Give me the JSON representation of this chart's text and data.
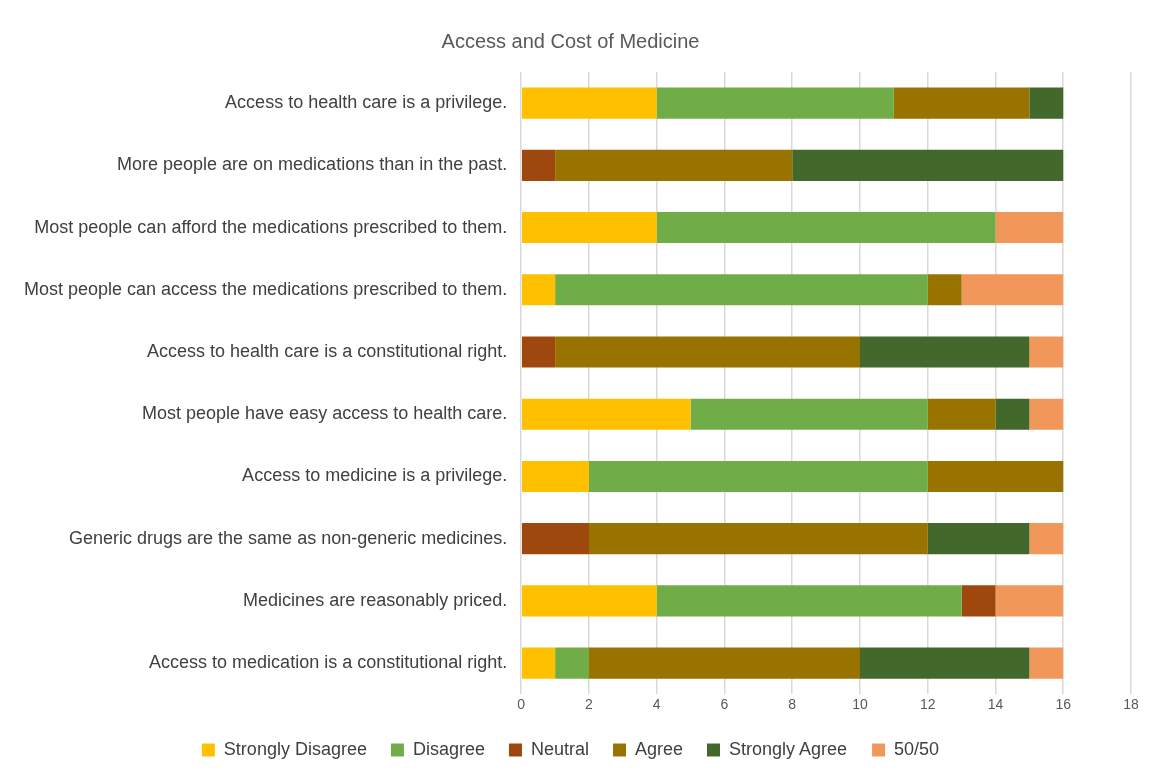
{
  "chart_data": {
    "type": "bar",
    "title": "Access and Cost of Medicine",
    "orientation": "horizontal",
    "stacked": true,
    "categories": [
      "Access to health care is a privilege.",
      "More people are on medications than in the past.",
      "Most people can afford the medications prescribed to them.",
      "Most people can access the medications prescribed to them.",
      "Access to health care is a constitutional right.",
      "Most people have easy access to health care.",
      "Access to medicine is a privilege.",
      "Generic drugs are the same as non-generic medicines.",
      "Medicines are reasonably priced.",
      "Access to medication is a constitutional right."
    ],
    "series": [
      {
        "name": "Strongly Disagree",
        "color": "#ffc000",
        "values": [
          4,
          0,
          4,
          1,
          0,
          5,
          2,
          0,
          4,
          1
        ]
      },
      {
        "name": "Disagree",
        "color": "#70ad47",
        "values": [
          7,
          0,
          10,
          11,
          0,
          7,
          10,
          0,
          9,
          1
        ]
      },
      {
        "name": "Neutral",
        "color": "#9e480e",
        "values": [
          0,
          1,
          0,
          0,
          1,
          0,
          0,
          2,
          1,
          0
        ]
      },
      {
        "name": "Agree",
        "color": "#997300",
        "values": [
          4,
          7,
          0,
          1,
          9,
          2,
          4,
          10,
          0,
          8
        ]
      },
      {
        "name": "Strongly Agree",
        "color": "#43682b",
        "values": [
          1,
          8,
          0,
          0,
          5,
          1,
          0,
          3,
          0,
          5
        ]
      },
      {
        "name": "50/50",
        "color": "#f1975a",
        "values": [
          0,
          0,
          2,
          3,
          1,
          1,
          0,
          1,
          2,
          1
        ]
      }
    ],
    "xlim": [
      0,
      18
    ],
    "xticks": [
      0,
      2,
      4,
      6,
      8,
      10,
      12,
      14,
      16,
      18
    ],
    "grid": "x",
    "legend": "bottom"
  }
}
